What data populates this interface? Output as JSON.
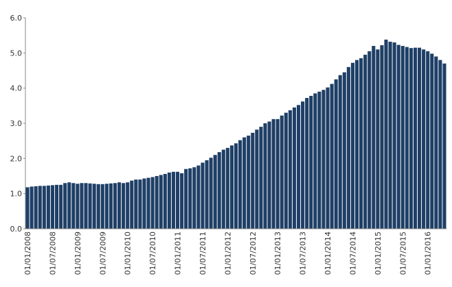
{
  "chart_data": {
    "type": "bar",
    "categories": [
      "01/01/2008",
      null,
      null,
      null,
      null,
      null,
      "01/07/2008",
      null,
      null,
      null,
      null,
      null,
      "01/01/2009",
      null,
      null,
      null,
      null,
      null,
      "01/07/2009",
      null,
      null,
      null,
      null,
      null,
      "01/01/2010",
      null,
      null,
      null,
      null,
      null,
      "01/07/2010",
      null,
      null,
      null,
      null,
      null,
      "01/01/2011",
      null,
      null,
      null,
      null,
      null,
      "01/07/2011",
      null,
      null,
      null,
      null,
      null,
      "01/01/2012",
      null,
      null,
      null,
      null,
      null,
      "01/07/2012",
      null,
      null,
      null,
      null,
      null,
      "01/01/2013",
      null,
      null,
      null,
      null,
      null,
      "01/07/2013",
      null,
      null,
      null,
      null,
      null,
      "01/01/2014",
      null,
      null,
      null,
      null,
      null,
      "01/07/2014",
      null,
      null,
      null,
      null,
      null,
      "01/01/2015",
      null,
      null,
      null,
      null,
      null,
      "01/07/2015",
      null,
      null,
      null,
      null,
      null,
      "01/01/2016",
      null,
      null,
      null,
      null
    ],
    "values": [
      1.18,
      1.2,
      1.21,
      1.22,
      1.22,
      1.23,
      1.24,
      1.25,
      1.25,
      1.3,
      1.32,
      1.3,
      1.28,
      1.3,
      1.3,
      1.29,
      1.28,
      1.27,
      1.27,
      1.28,
      1.29,
      1.3,
      1.32,
      1.3,
      1.32,
      1.37,
      1.4,
      1.4,
      1.43,
      1.45,
      1.47,
      1.5,
      1.53,
      1.56,
      1.6,
      1.62,
      1.62,
      1.58,
      1.7,
      1.72,
      1.75,
      1.8,
      1.88,
      1.95,
      2.02,
      2.1,
      2.18,
      2.25,
      2.3,
      2.37,
      2.43,
      2.52,
      2.6,
      2.65,
      2.73,
      2.82,
      2.9,
      3.0,
      3.05,
      3.12,
      3.12,
      3.22,
      3.3,
      3.37,
      3.45,
      3.52,
      3.62,
      3.72,
      3.78,
      3.85,
      3.9,
      3.95,
      4.02,
      4.12,
      4.25,
      4.37,
      4.45,
      4.6,
      4.72,
      4.8,
      4.85,
      4.95,
      5.05,
      5.2,
      5.1,
      5.22,
      5.38,
      5.32,
      5.3,
      5.23,
      5.2,
      5.17,
      5.14,
      5.15,
      5.15,
      5.1,
      5.05,
      4.98,
      4.9,
      4.8,
      4.7
    ],
    "color": "#1f3f66",
    "ylim": [
      0,
      6
    ],
    "yticks": [
      {
        "value": 0,
        "label": "0.0"
      },
      {
        "value": 1,
        "label": "1.0"
      },
      {
        "value": 2,
        "label": "2.0"
      },
      {
        "value": 3,
        "label": "3.0"
      },
      {
        "value": 4,
        "label": "4.0"
      },
      {
        "value": 5,
        "label": "5.0"
      },
      {
        "value": 6,
        "label": "6.0"
      }
    ],
    "grid": false
  }
}
